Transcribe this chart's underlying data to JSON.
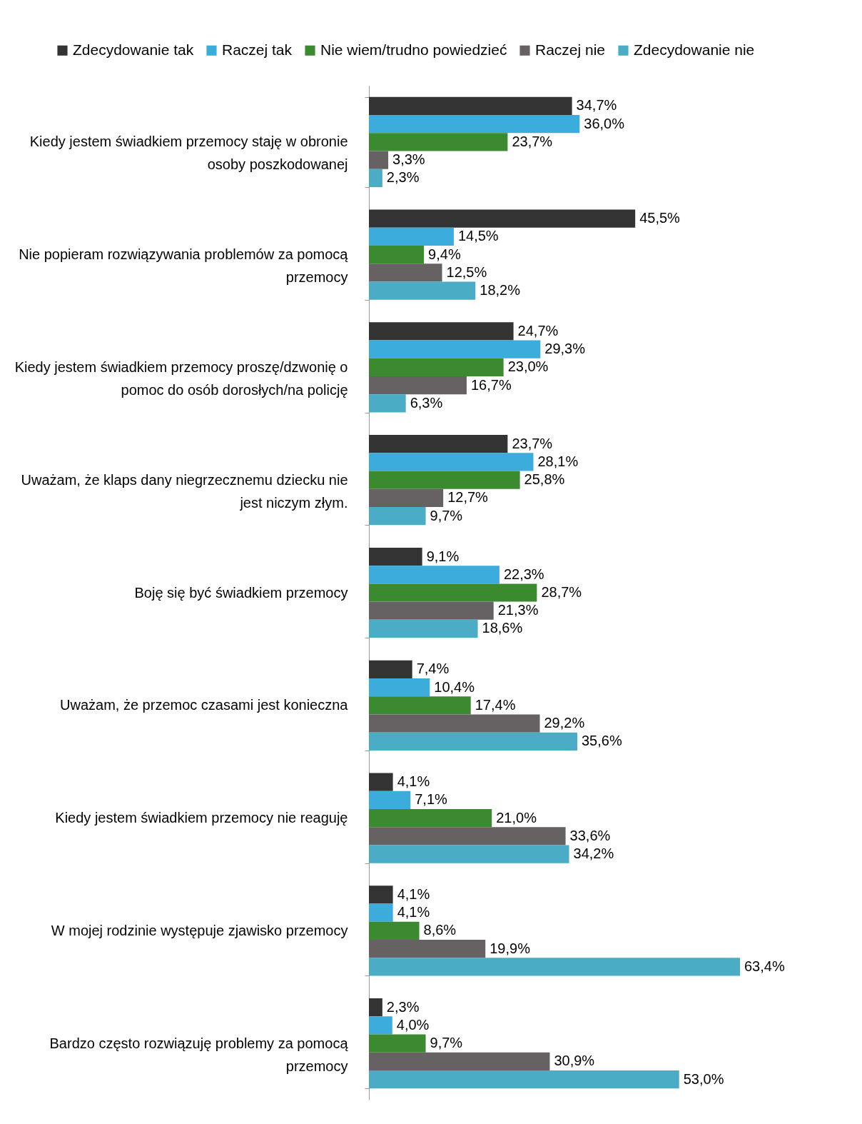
{
  "chart_data": {
    "type": "bar",
    "orientation": "horizontal",
    "legend": "top",
    "grid": false,
    "categories": [
      "Kiedy jestem świadkiem przemocy staję w obronie osoby poszkodowanej",
      "Nie popieram rozwiązywania problemów za pomocą przemocy",
      "Kiedy jestem świadkiem przemocy proszę/dzwonię o pomoc do osób dorosłych/na policję",
      "Uważam, że klaps dany niegrzecznemu dziecku nie jest niczym złym.",
      "Boję się być świadkiem przemocy",
      "Uważam, że przemoc czasami jest konieczna",
      "Kiedy jestem świadkiem przemocy nie reaguję",
      "W mojej rodzinie występuje zjawisko przemocy",
      "Bardzo często rozwiązuję problemy za pomocą przemocy"
    ],
    "series": [
      {
        "name": "Zdecydowanie tak",
        "color": "#333333",
        "values": [
          34.7,
          45.5,
          24.7,
          23.7,
          9.1,
          7.4,
          4.1,
          4.1,
          2.3
        ],
        "value_labels": [
          "34,7%",
          "45,5%",
          "24,7%",
          "23,7%",
          "9,1%",
          "7,4%",
          "4,1%",
          "4,1%",
          "2,3%"
        ]
      },
      {
        "name": "Raczej tak",
        "color": "#3cacdc",
        "values": [
          36.0,
          14.5,
          29.3,
          28.1,
          22.3,
          10.4,
          7.1,
          4.1,
          4.0
        ],
        "value_labels": [
          "36,0%",
          "14,5%",
          "29,3%",
          "28,1%",
          "22,3%",
          "10,4%",
          "7,1%",
          "4,1%",
          "4,0%"
        ]
      },
      {
        "name": "Nie wiem/trudno powiedzieć",
        "color": "#3b8a2f",
        "values": [
          23.7,
          9.4,
          23.0,
          25.8,
          28.7,
          17.4,
          21.0,
          8.6,
          9.7
        ],
        "value_labels": [
          "23,7%",
          "9,4%",
          "23,0%",
          "25,8%",
          "28,7%",
          "17,4%",
          "21,0%",
          "8,6%",
          "9,7%"
        ]
      },
      {
        "name": "Raczej nie",
        "color": "#666163",
        "values": [
          3.3,
          12.5,
          16.7,
          12.7,
          21.3,
          29.2,
          33.6,
          19.9,
          30.9
        ],
        "value_labels": [
          "3,3%",
          "12,5%",
          "16,7%",
          "12,7%",
          "21,3%",
          "29,2%",
          "33,6%",
          "19,9%",
          "30,9%"
        ]
      },
      {
        "name": "Zdecydowanie nie",
        "color": "#4bacc6",
        "values": [
          2.3,
          18.2,
          6.3,
          9.7,
          18.6,
          35.6,
          34.2,
          63.4,
          53.0
        ],
        "value_labels": [
          "2,3%",
          "18,2%",
          "6,3%",
          "9,7%",
          "18,6%",
          "35,6%",
          "34,2%",
          "63,4%",
          "53,0%"
        ]
      }
    ]
  }
}
